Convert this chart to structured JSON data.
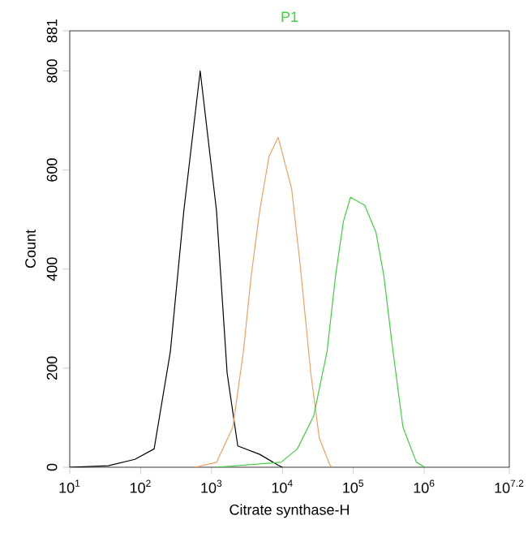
{
  "chart_data": {
    "type": "line",
    "title": "P1",
    "xlabel": "Citrate synthase-H",
    "ylabel": "Count",
    "log": "x",
    "xlim": [
      10,
      15848932
    ],
    "ylim": [
      0,
      881
    ],
    "xticks": [
      {
        "value": 10,
        "label": "10$^{1}$"
      },
      {
        "value": 100,
        "label": "10$^{2}$"
      },
      {
        "value": 1000,
        "label": "10$^{3}$"
      },
      {
        "value": 10000,
        "label": "10$^{4}$"
      },
      {
        "value": 100000,
        "label": "10$^{5}$"
      },
      {
        "value": 1000000,
        "label": "10$^{6}$"
      },
      {
        "value": 15848932,
        "label": "10$^{7.2}$"
      }
    ],
    "yticks": [
      0,
      200,
      400,
      600,
      800,
      881
    ],
    "series": [
      {
        "color": "#000000",
        "x": [
          10,
          35,
          83,
          155,
          263,
          407,
          692,
          1175,
          1660,
          2344,
          4786,
          8710,
          10000
        ],
        "values": [
          0,
          3,
          16,
          37,
          234,
          518,
          800,
          518,
          190,
          43,
          26,
          4,
          0
        ]
      },
      {
        "color": "#f0a060",
        "x": [
          575,
          1175,
          2000,
          2818,
          3631,
          4786,
          6457,
          8710,
          13490,
          17780,
          25120,
          33110,
          46770,
          50120
        ],
        "values": [
          0,
          10,
          81,
          234,
          387,
          518,
          627,
          666,
          562,
          409,
          190,
          59,
          4,
          0
        ]
      },
      {
        "color": "#40d040",
        "x": [
          1150,
          9550,
          16220,
          27540,
          42660,
          56230,
          72440,
          91200,
          144500,
          208900,
          269200,
          354800,
          501200,
          776200,
          1023000
        ],
        "values": [
          0,
          10,
          37,
          103,
          234,
          387,
          496,
          545,
          529,
          474,
          387,
          245,
          81,
          10,
          0
        ]
      }
    ]
  }
}
